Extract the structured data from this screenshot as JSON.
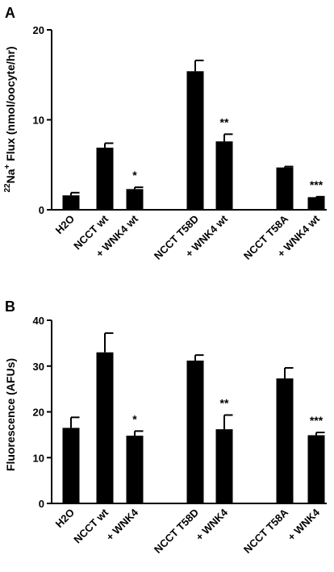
{
  "chart_data": [
    {
      "type": "bar",
      "panel_label": "A",
      "ylabel_sup": "22",
      "ylabel_main": "Na",
      "ylabel_sup2": "+",
      "ylabel_rest": " Flux (nmol/oocyte/hr)",
      "ylim": [
        0,
        20
      ],
      "yticks": [
        "0",
        "10",
        "20"
      ],
      "categories": [
        "H2O",
        "NCCT wt",
        "+ WNK4 wt",
        "NCCT T58D",
        "+ WNK4 wt",
        "NCCT T58A",
        "+ WNK4 wt"
      ],
      "values": [
        1.6,
        6.9,
        2.3,
        15.4,
        7.6,
        4.7,
        1.4
      ],
      "errors": [
        0.3,
        0.5,
        0.2,
        1.2,
        0.8,
        0.1,
        0.05
      ],
      "significance": [
        "",
        "",
        "*",
        "",
        "**",
        "",
        "***"
      ],
      "grid": false
    },
    {
      "type": "bar",
      "panel_label": "B",
      "ylabel": "Fluorescence (AFUs)",
      "ylim": [
        0,
        40
      ],
      "yticks": [
        "0",
        "10",
        "20",
        "30",
        "40"
      ],
      "categories": [
        "H2O",
        "NCCT wt",
        "+ WNK4",
        "NCCT T58D",
        "+ WNK4",
        "NCCT T58A",
        "+ WNK4"
      ],
      "values": [
        16.5,
        33.0,
        14.8,
        31.2,
        16.2,
        27.3,
        14.9
      ],
      "errors": [
        2.3,
        4.2,
        1.0,
        1.2,
        3.1,
        2.3,
        0.6
      ],
      "significance": [
        "",
        "",
        "*",
        "",
        "**",
        "",
        "***"
      ],
      "grid": false
    }
  ]
}
